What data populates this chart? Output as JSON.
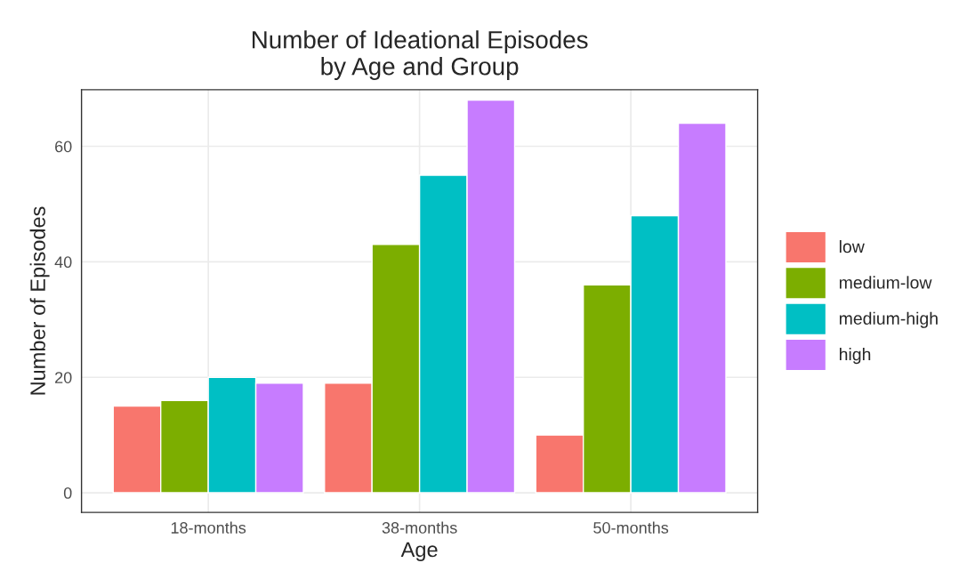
{
  "chart_data": {
    "type": "bar",
    "title": "Number of Ideational Episodes\nby Age and Group",
    "xlabel": "Age",
    "ylabel": "Number of Episodes",
    "categories": [
      "18-months",
      "38-months",
      "50-months"
    ],
    "series": [
      {
        "name": "low",
        "color": "#f8766d",
        "values": [
          15,
          19,
          10
        ]
      },
      {
        "name": "medium-low",
        "color": "#7cae00",
        "values": [
          16,
          43,
          36
        ]
      },
      {
        "name": "medium-high",
        "color": "#00bfc4",
        "values": [
          20,
          55,
          48
        ]
      },
      {
        "name": "high",
        "color": "#c77cff",
        "values": [
          19,
          68,
          64
        ]
      }
    ],
    "ylim": [
      -3.4,
      69.8
    ],
    "yticks": [
      0,
      20,
      40,
      60
    ],
    "grid": true,
    "legend": "right"
  }
}
